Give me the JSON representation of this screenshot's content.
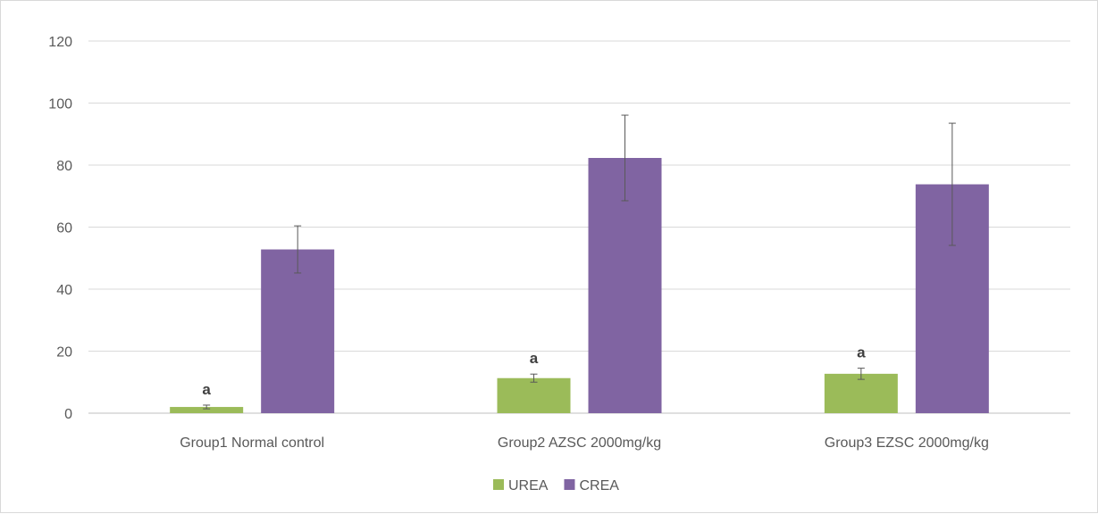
{
  "chart_data": {
    "type": "bar",
    "title": "",
    "xlabel": "",
    "ylabel": "",
    "ylim": [
      0,
      120
    ],
    "yticks": [
      0,
      20,
      40,
      60,
      80,
      100,
      120
    ],
    "grid": true,
    "legend_position": "bottom",
    "categories": [
      "Group1 Normal control",
      "Group2 AZSC 2000mg/kg",
      "Group3 EZSC 2000mg/kg"
    ],
    "series": [
      {
        "name": "UREA",
        "color": "#9bbb59",
        "values": [
          2.0,
          11.3,
          12.7
        ],
        "error": [
          0.6,
          1.3,
          1.8
        ],
        "annotations": [
          "a",
          "a",
          "a"
        ]
      },
      {
        "name": "CREA",
        "color": "#8064a2",
        "values": [
          52.8,
          82.3,
          73.8
        ],
        "error": [
          7.6,
          13.8,
          19.7
        ],
        "annotations": [
          "",
          "",
          ""
        ]
      }
    ]
  }
}
